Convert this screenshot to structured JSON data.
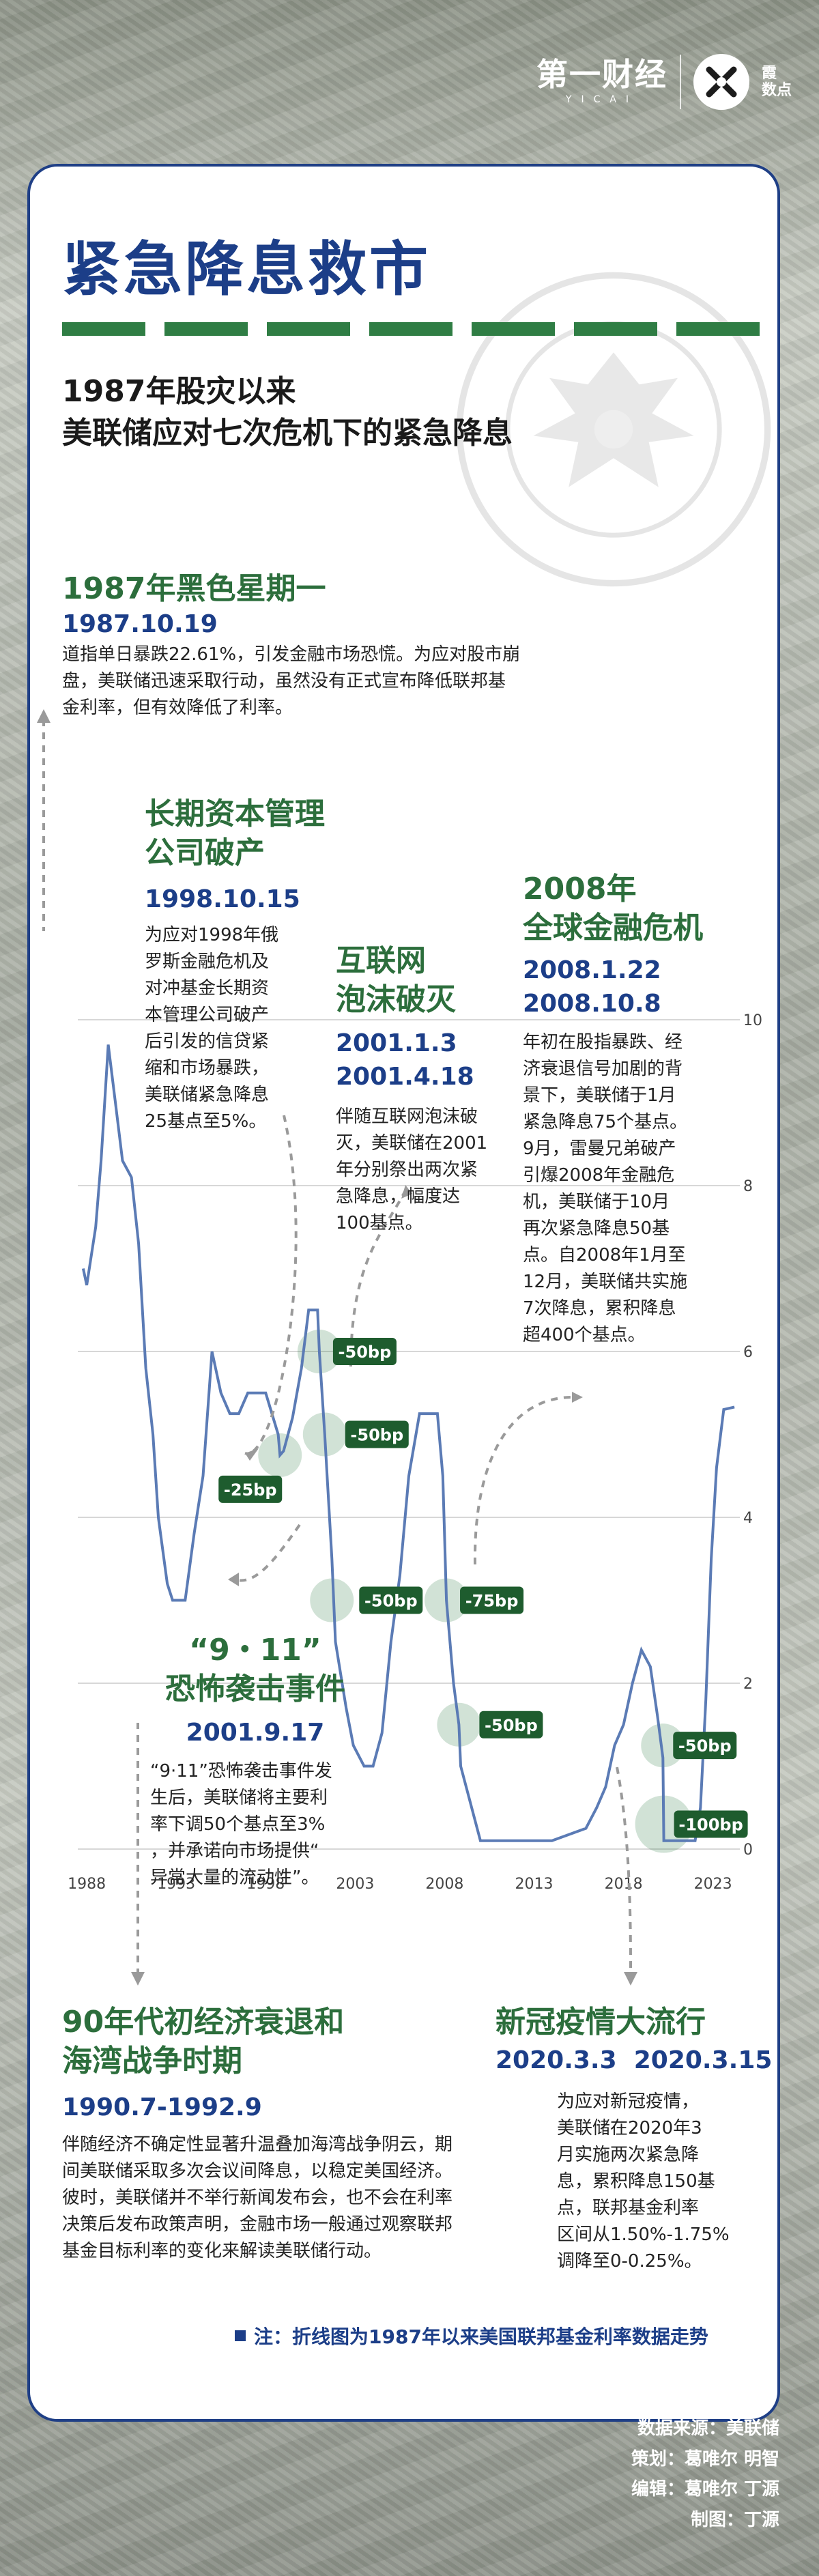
{
  "brand": {
    "name": "第一财经",
    "name_en": "YICAI",
    "sub_line1": "霞",
    "sub_line2": "数点"
  },
  "title": "紧急降息救市",
  "subtitle_line1": "1987年股灾以来",
  "subtitle_line2": "美联储应对七次危机下的紧急降息",
  "events": {
    "e1987": {
      "title": "1987年黑色星期一",
      "date": "1987.10.19",
      "desc": [
        "道指单日暴跌22.61%，引发金融市场恐慌。为应对股市崩",
        "盘，美联储迅速采取行动，虽然没有正式宣布降低联邦基",
        "金利率，但有效降低了利率。"
      ]
    },
    "e1998": {
      "title": [
        "长期资本管理",
        "公司破产"
      ],
      "date": "1998.10.15",
      "desc": [
        "为应对1998年俄",
        "罗斯金融危机及",
        "对冲基金长期资",
        "本管理公司破产",
        "后引发的信贷紧",
        "缩和市场暴跌，",
        "美联储紧急降息",
        "25基点至5%。"
      ]
    },
    "e2001a": {
      "title": [
        "互联网",
        "泡沫破灭"
      ],
      "dates": [
        "2001.1.3",
        "2001.4.18"
      ],
      "desc": [
        "伴随互联网泡沫破",
        "灭，美联储在2001",
        "年分别祭出两次紧",
        "急降息，幅度达",
        "100基点。"
      ]
    },
    "e2008": {
      "title": [
        "2008年",
        "全球金融危机"
      ],
      "dates": [
        "2008.1.22",
        "2008.10.8"
      ],
      "desc": [
        "年初在股指暴跌、经",
        "济衰退信号加剧的背",
        "景下，美联储于1月",
        "紧急降息75个基点。",
        "9月，雷曼兄弟破产",
        "引爆2008年金融危",
        "机，美联储于10月",
        "再次紧急降息50基",
        "点。自2008年1月至",
        "12月，美联储共实施",
        "7次降息，累积降息",
        "超400个基点。"
      ]
    },
    "e911": {
      "title": [
        "“9・11”",
        "恐怖袭击事件"
      ],
      "date": "2001.9.17",
      "desc": [
        "“9·11”恐怖袭击事件发",
        "生后，美联储将主要利",
        "率下调50个基点至3%",
        "，并承诺向市场提供“",
        "异常大量的流动性”。"
      ]
    },
    "e1990": {
      "title": [
        "90年代初经济衰退和",
        "海湾战争时期"
      ],
      "date": "1990.7-1992.9",
      "desc": [
        "伴随经济不确定性显著升温叠加海湾战争阴云，期",
        "间美联储采取多次会议间降息，以稳定美国经济。",
        "彼时，美联储并不举行新闻发布会，也不会在利率",
        "决策后发布政策声明，金融市场一般通过观察联邦",
        "基金目标利率的变化来解读美联储行动。"
      ]
    },
    "e2020": {
      "title": "新冠疫情大流行",
      "dates": [
        "2020.3.3",
        "2020.3.15"
      ],
      "desc": [
        "为应对新冠疫情，",
        "美联储在2020年3",
        "月实施两次紧急降",
        "息，累积降息150基",
        "点，联邦基金利率",
        "区间从1.50%-1.75%",
        "调降至0-0.25%。"
      ]
    }
  },
  "cut_labels": [
    "-25bp",
    "-50bp",
    "-50bp",
    "-50bp",
    "-75bp",
    "-50bp",
    "-50bp",
    "-100bp"
  ],
  "chart_data": {
    "type": "line",
    "title": "",
    "xlabel": "",
    "ylabel": "",
    "xlim": [
      1987.5,
      2024.5
    ],
    "ylim": [
      0,
      10
    ],
    "x_ticks": [
      "1988",
      "1993",
      "1998",
      "2003",
      "2008",
      "2013",
      "2018",
      "2023"
    ],
    "y_ticks": [
      "0",
      "2",
      "4",
      "6",
      "8",
      "10"
    ],
    "grid": true,
    "series": [
      {
        "x": [
          1987.8,
          1988.0,
          1988.5,
          1988.8,
          1989.2,
          1989.6,
          1990.0,
          1990.5,
          1990.9,
          1991.3,
          1991.7,
          1992.0,
          1992.5,
          1992.8,
          1993.5,
          1994.0,
          1994.5,
          1995.0,
          1995.5,
          1996.0,
          1996.5,
          1997.0,
          1997.5,
          1998.0,
          1998.7,
          1998.8,
          1999.0,
          1999.5,
          2000.0,
          2000.4,
          2000.9,
          2001.0,
          2001.3,
          2001.7,
          2001.9,
          2002.5,
          2002.9,
          2003.5,
          2004.0,
          2004.5,
          2005.0,
          2005.5,
          2006.0,
          2006.6,
          2007.6,
          2007.9,
          2008.1,
          2008.5,
          2008.8,
          2008.9,
          2010.0,
          2014.0,
          2015.9,
          2016.5,
          2017.0,
          2017.5,
          2018.0,
          2018.5,
          2019.0,
          2019.5,
          2019.9,
          2020.2,
          2020.25,
          2021.0,
          2022.0,
          2022.3,
          2022.6,
          2022.9,
          2023.2,
          2023.6,
          2024.2
        ],
        "y": [
          7.0,
          6.8,
          7.5,
          8.3,
          9.7,
          9.0,
          8.3,
          8.1,
          7.3,
          5.8,
          5.0,
          4.0,
          3.2,
          3.0,
          3.0,
          3.8,
          4.5,
          6.0,
          5.5,
          5.25,
          5.25,
          5.5,
          5.5,
          5.5,
          5.0,
          4.75,
          4.8,
          5.2,
          5.8,
          6.5,
          6.5,
          6.0,
          5.0,
          3.5,
          2.5,
          1.7,
          1.25,
          1.0,
          1.0,
          1.4,
          2.5,
          3.3,
          4.5,
          5.25,
          5.25,
          4.5,
          3.0,
          2.0,
          1.5,
          1.0,
          0.1,
          0.1,
          0.25,
          0.5,
          0.75,
          1.25,
          1.5,
          2.0,
          2.4,
          2.2,
          1.6,
          1.1,
          0.1,
          0.1,
          0.1,
          0.5,
          1.8,
          3.5,
          4.6,
          5.3,
          5.33
        ]
      }
    ]
  },
  "note": "注：折线图为1987年以来美国联邦基金利率数据走势",
  "credits": [
    "数据来源：美联储",
    "策划：葛唯尔 明智",
    "编辑：葛唯尔 丁源",
    "制图：丁源"
  ]
}
